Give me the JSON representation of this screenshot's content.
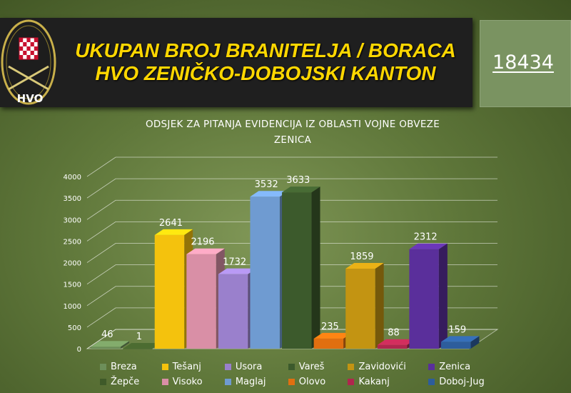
{
  "header": {
    "logo_text": "HVO",
    "title_line1": "UKUPAN BROJ BRANITELJA / BORACA",
    "title_line2": "HVO ZENIČKO-DOBOJSKI KANTON",
    "total": "18434"
  },
  "colors": {
    "title": "#ffd700",
    "header_background": "#1f1f1f",
    "total_box": "#7a9361"
  },
  "chart_data": {
    "type": "bar",
    "title_line1": "ODSJEK ZA PITANJA EVIDENCIJA IZ OBLASTI VOJNE OBVEZE",
    "title_line2": "ZENICA",
    "ylim": [
      0,
      4000
    ],
    "yticks": [
      "0",
      "500",
      "1000",
      "1500",
      "2000",
      "2500",
      "3000",
      "3500",
      "4000"
    ],
    "grid": true,
    "legend_position": "bottom",
    "series": [
      {
        "name": "Breza",
        "value": 46,
        "color": "#6d8f5a"
      },
      {
        "name": "Žepče",
        "value": 1,
        "color": "#3f5a29"
      },
      {
        "name": "Tešanj",
        "value": 2641,
        "color": "#f4c20d"
      },
      {
        "name": "Visoko",
        "value": 2196,
        "color": "#d98fa6"
      },
      {
        "name": "Usora",
        "value": 1732,
        "color": "#9a80cc"
      },
      {
        "name": "Maglaj",
        "value": 3532,
        "color": "#6f9bd1"
      },
      {
        "name": "Vareš",
        "value": 3633,
        "color": "#3c5a2c"
      },
      {
        "name": "Olovo",
        "value": 235,
        "color": "#e06f10"
      },
      {
        "name": "Zavidovići",
        "value": 1859,
        "color": "#c39412"
      },
      {
        "name": "Kakanj",
        "value": 88,
        "color": "#b0264e"
      },
      {
        "name": "Zenica",
        "value": 2312,
        "color": "#5a2f9b"
      },
      {
        "name": "Doboj-Jug",
        "value": 159,
        "color": "#2d5d9c"
      }
    ],
    "legend_order": [
      "Breza",
      "Tešanj",
      "Usora",
      "Vareš",
      "Zavidovići",
      "Zenica",
      "Žepče",
      "Visoko",
      "Maglaj",
      "Olovo",
      "Kakanj",
      "Doboj-Jug"
    ]
  }
}
